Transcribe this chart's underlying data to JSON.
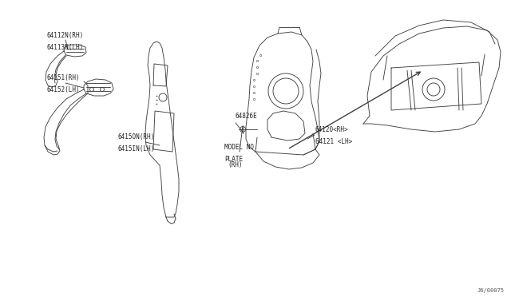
{
  "bg_color": "#ffffff",
  "line_color": "#404040",
  "label_color": "#222222",
  "diagram_id": "J6/00075",
  "labels": {
    "part1_line1": "64151(RH)",
    "part1_line2": "64152(LH)",
    "part2_line1": "6415ON(RH)",
    "part2_line2": "6415IN(LH)",
    "part3_line1": "MODEL NO.",
    "part3_line2": "PLATE",
    "part3_line3": "(RH)",
    "part4_line1": "64120<RH>",
    "part4_line2": "64121 <LH>",
    "part5_line1": "64112N(RH)",
    "part5_line2": "64113N(LH)",
    "part6": "64826E"
  },
  "font_size": 5.5,
  "title_font_size": 7
}
